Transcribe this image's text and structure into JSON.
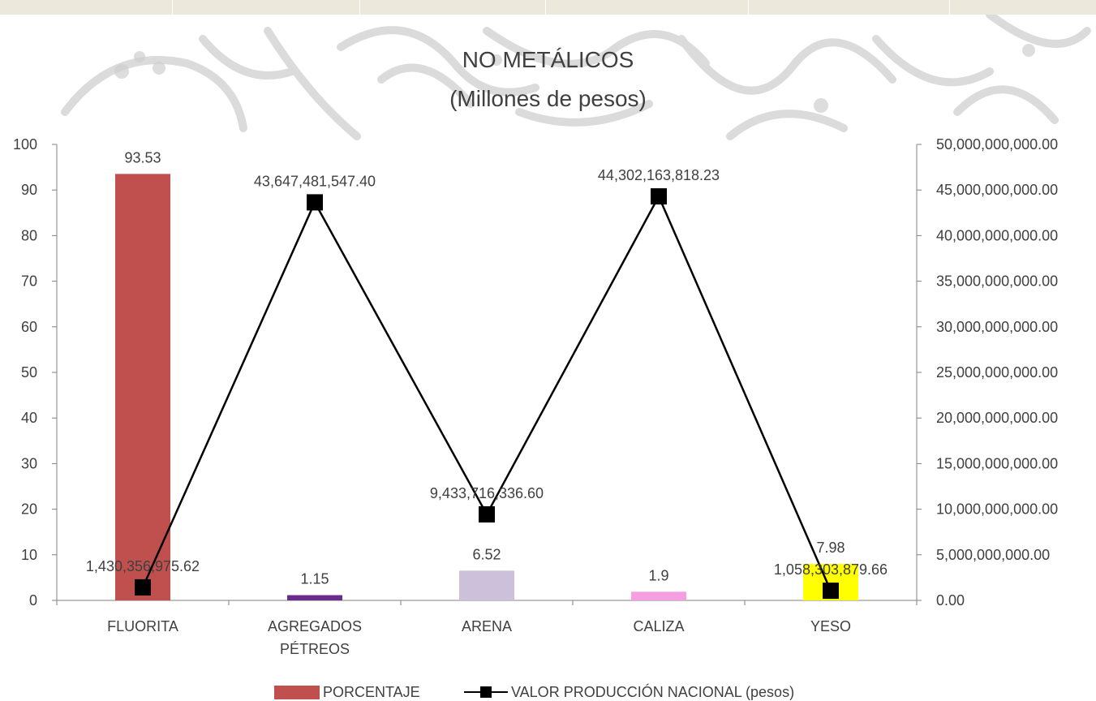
{
  "chart_data": {
    "type": "bar",
    "title_line1": "NO METÁLICOS",
    "title_line2": "(Millones de pesos)",
    "categories": [
      [
        "FLUORITA"
      ],
      [
        "AGREGADOS",
        "PÉTREOS"
      ],
      [
        "ARENA"
      ],
      [
        "CALIZA"
      ],
      [
        "YESO"
      ]
    ],
    "series": [
      {
        "name": "PORCENTAJE",
        "type": "bar",
        "axis": "left",
        "values": [
          93.53,
          1.15,
          6.52,
          1.9,
          7.98
        ],
        "labels": [
          "93.53",
          "1.15",
          "6.52",
          "1.9",
          "7.98"
        ],
        "colors": [
          "#c0504d",
          "#6a2c8c",
          "#ccc0da",
          "#f59ee0",
          "#ffff00"
        ]
      },
      {
        "name": "VALOR PRODUCCIÓN NACIONAL (pesos)",
        "type": "line",
        "axis": "right",
        "values": [
          1430356975.62,
          43647481547.4,
          9433716336.6,
          44302163818.23,
          1058303879.66
        ],
        "labels": [
          "1,430,356,975.62",
          "43,647,481,547.40",
          "9,433,716,336.60",
          "44,302,163,818.23",
          "1,058,303,879.66"
        ],
        "color": "#000000"
      }
    ],
    "y_left": {
      "min": 0,
      "max": 100,
      "step": 10,
      "ticks": [
        "0",
        "10",
        "20",
        "30",
        "40",
        "50",
        "60",
        "70",
        "80",
        "90",
        "100"
      ]
    },
    "y_right": {
      "min": 0,
      "max": 50000000000,
      "step": 5000000000,
      "ticks": [
        "0.00",
        "5,000,000,000.00",
        "10,000,000,000.00",
        "15,000,000,000.00",
        "20,000,000,000.00",
        "25,000,000,000.00",
        "30,000,000,000.00",
        "35,000,000,000.00",
        "40,000,000,000.00",
        "45,000,000,000.00",
        "50,000,000,000.00"
      ]
    },
    "grid": false,
    "legend_position": "bottom"
  },
  "legend": {
    "bar_label": "PORCENTAJE",
    "line_label": "VALOR PRODUCCIÓN NACIONAL (pesos)"
  },
  "colors": {
    "text": "#404040",
    "axis": "#808080",
    "bar_legend": "#c0504d",
    "line": "#000000",
    "top_band": "#ece8dc",
    "watermark": "#c9c9c9"
  }
}
